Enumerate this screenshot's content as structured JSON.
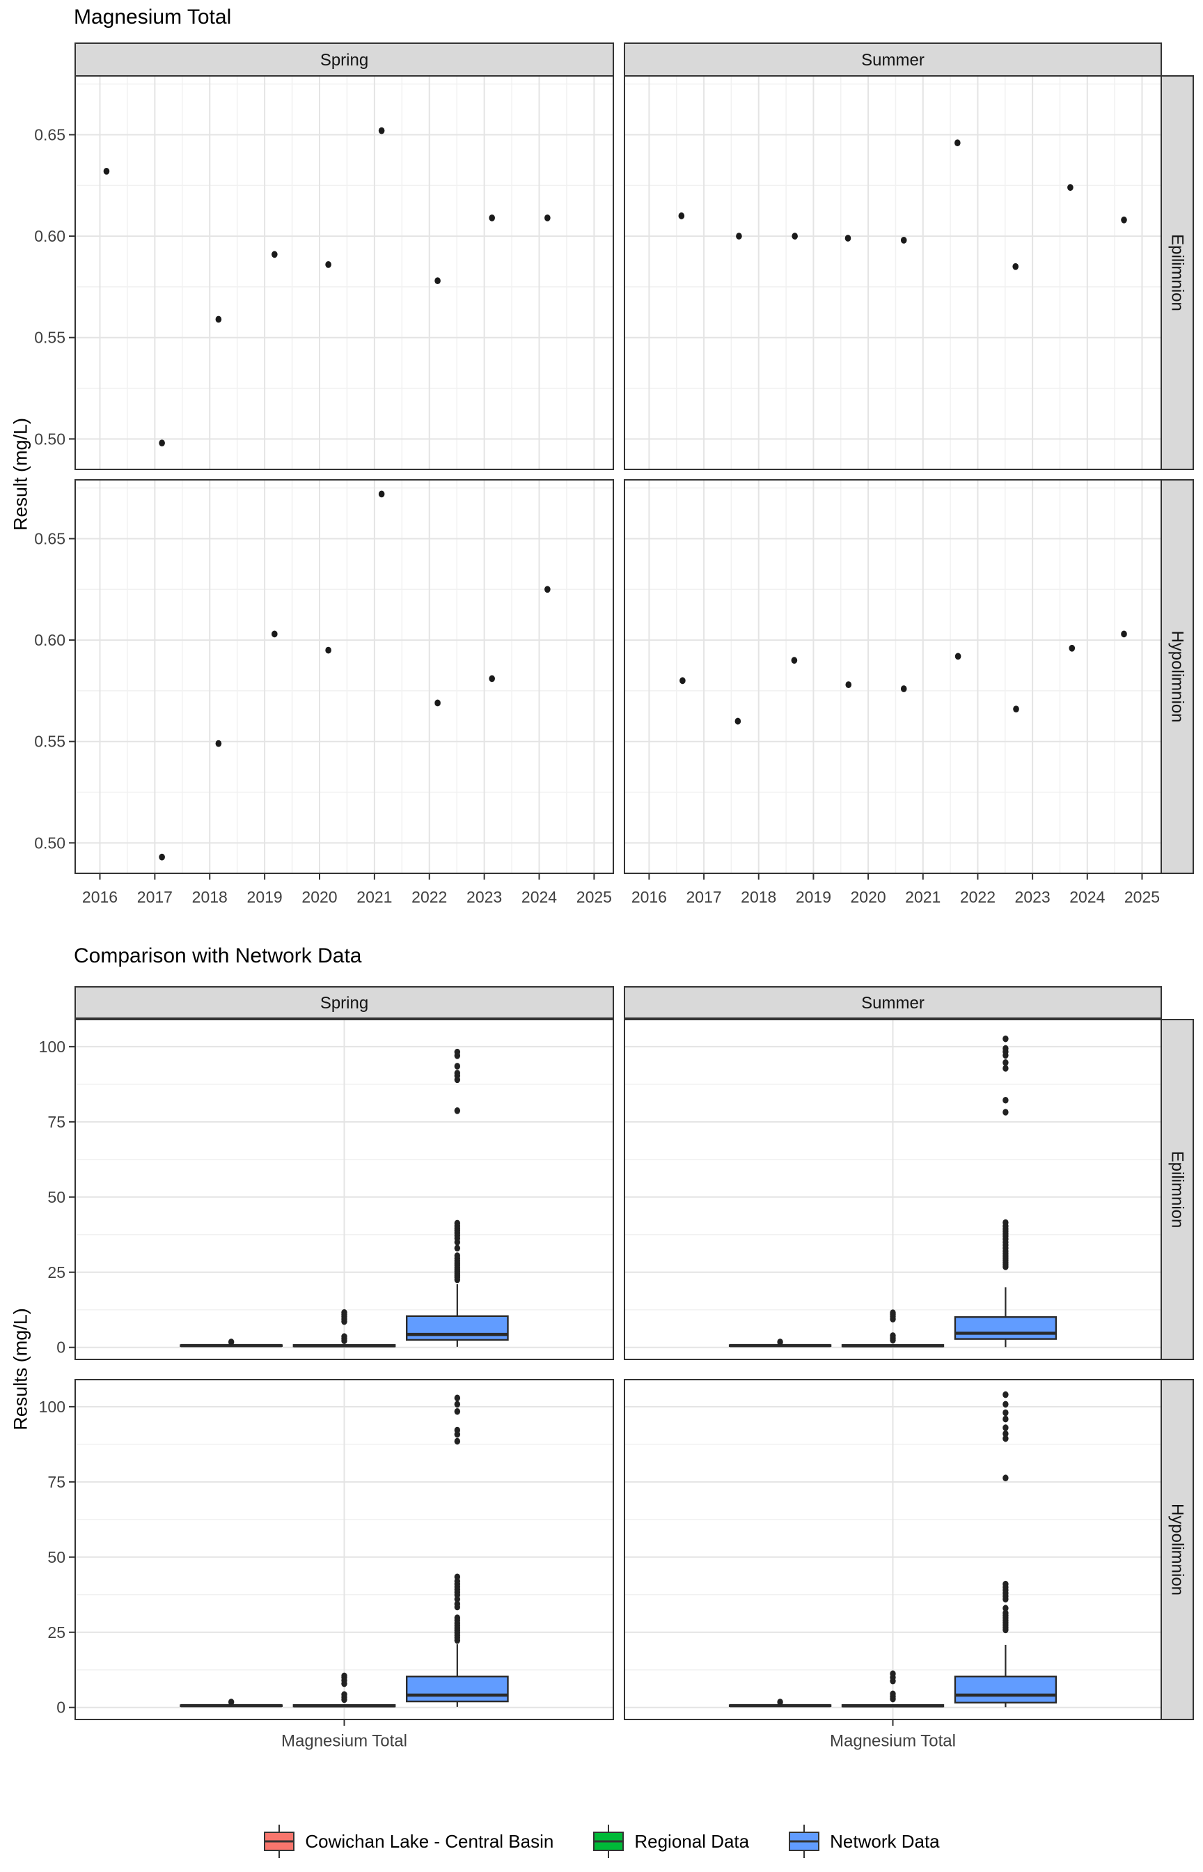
{
  "chart_data": [
    {
      "type": "scatter",
      "title": "Magnesium Total",
      "ylabel": "Result (mg/L)",
      "col_facets": [
        "Spring",
        "Summer"
      ],
      "row_facets": [
        "Epilimnion",
        "Hypolimnion"
      ],
      "x_ticks": [
        2016,
        2017,
        2018,
        2019,
        2020,
        2021,
        2022,
        2023,
        2024,
        2025
      ],
      "y_ticks": [
        0.5,
        0.55,
        0.6,
        0.65
      ],
      "y_tick_labels": [
        "0.50",
        "0.55",
        "0.60",
        "0.65"
      ],
      "xlim": [
        2015.55,
        2025.35
      ],
      "ylim": [
        0.485,
        0.679
      ],
      "grid": true,
      "point_color": "#1a1a1a",
      "series": [
        {
          "col": "Spring",
          "row": "Epilimnion",
          "points": [
            [
              2016.12,
              0.632
            ],
            [
              2017.13,
              0.498
            ],
            [
              2018.16,
              0.559
            ],
            [
              2019.18,
              0.591
            ],
            [
              2020.16,
              0.586
            ],
            [
              2021.13,
              0.652
            ],
            [
              2022.15,
              0.578
            ],
            [
              2023.14,
              0.609
            ],
            [
              2024.15,
              0.609
            ]
          ]
        },
        {
          "col": "Summer",
          "row": "Epilimnion",
          "points": [
            [
              2016.59,
              0.61
            ],
            [
              2017.64,
              0.6
            ],
            [
              2018.66,
              0.6
            ],
            [
              2019.63,
              0.599
            ],
            [
              2020.65,
              0.598
            ],
            [
              2021.63,
              0.646
            ],
            [
              2022.69,
              0.585
            ],
            [
              2023.69,
              0.624
            ],
            [
              2024.67,
              0.608
            ]
          ]
        },
        {
          "col": "Spring",
          "row": "Hypolimnion",
          "points": [
            [
              2017.13,
              0.493
            ],
            [
              2018.16,
              0.549
            ],
            [
              2019.18,
              0.603
            ],
            [
              2020.16,
              0.595
            ],
            [
              2021.13,
              0.672
            ],
            [
              2022.15,
              0.569
            ],
            [
              2023.14,
              0.581
            ],
            [
              2024.15,
              0.625
            ]
          ]
        },
        {
          "col": "Summer",
          "row": "Hypolimnion",
          "points": [
            [
              2016.61,
              0.58
            ],
            [
              2017.62,
              0.56
            ],
            [
              2018.65,
              0.59
            ],
            [
              2019.64,
              0.578
            ],
            [
              2020.65,
              0.576
            ],
            [
              2021.64,
              0.592
            ],
            [
              2022.7,
              0.566
            ],
            [
              2023.72,
              0.596
            ],
            [
              2024.67,
              0.603
            ]
          ]
        }
      ]
    },
    {
      "type": "box",
      "title": "Comparison with Network Data",
      "ylabel": "Results (mg/L)",
      "x_category": "Magnesium Total",
      "col_facets": [
        "Spring",
        "Summer"
      ],
      "row_facets": [
        "Epilimnion",
        "Hypolimnion"
      ],
      "y_ticks": [
        0,
        25,
        50,
        75,
        100
      ],
      "y_tick_labels": [
        "0",
        "25",
        "50",
        "75",
        "100"
      ],
      "ylim": [
        -4,
        109
      ],
      "grid": true,
      "groups": [
        "Cowichan Lake - Central Basin",
        "Regional Data",
        "Network Data"
      ],
      "group_colors": [
        "#F8766D",
        "#00BA38",
        "#619CFF"
      ],
      "panels": [
        {
          "col": "Spring",
          "row": "Epilimnion",
          "boxes": [
            {
              "group": "Cowichan Lake - Central Basin",
              "min": 0.3,
              "q1": 0.45,
              "median": 0.6,
              "q3": 0.75,
              "max": 0.9,
              "outliers": [
                1.8
              ]
            },
            {
              "group": "Regional Data",
              "min": 0.1,
              "q1": 0.35,
              "median": 0.55,
              "q3": 0.8,
              "max": 1.1,
              "outliers": [
                2.2,
                2.9,
                3.6,
                8.6,
                9.4,
                10.2,
                10.9,
                11.6
              ]
            },
            {
              "group": "Network Data",
              "min": 0.2,
              "q1": 2.5,
              "median": 4.3,
              "q3": 10.4,
              "max": 21,
              "outliers": [
                22.5,
                23.3,
                24,
                24.6,
                25.2,
                25.8,
                26.5,
                27.3,
                28,
                28.8,
                29.6,
                30.5,
                33,
                35,
                36.3,
                37.2,
                38,
                38.8,
                39.6,
                40.4,
                41.3,
                78.7,
                89,
                90.3,
                91.2,
                93.5,
                97,
                98.2
              ]
            }
          ]
        },
        {
          "col": "Summer",
          "row": "Epilimnion",
          "boxes": [
            {
              "group": "Cowichan Lake - Central Basin",
              "min": 0.3,
              "q1": 0.45,
              "median": 0.6,
              "q3": 0.75,
              "max": 0.9,
              "outliers": [
                1.8
              ]
            },
            {
              "group": "Regional Data",
              "min": 0.1,
              "q1": 0.35,
              "median": 0.55,
              "q3": 0.8,
              "max": 1.1,
              "outliers": [
                2.4,
                3.1,
                3.9,
                9.4,
                10.3,
                11.0,
                11.5
              ]
            },
            {
              "group": "Network Data",
              "min": 0.1,
              "q1": 2.8,
              "median": 4.7,
              "q3": 10.1,
              "max": 20,
              "outliers": [
                26.8,
                27.5,
                28.2,
                29,
                29.7,
                30.4,
                31.2,
                32,
                33,
                34,
                35,
                36,
                37,
                37.8,
                38.6,
                39.4,
                40.3,
                41.5,
                78.2,
                82.2,
                92.8,
                94.7,
                97.1,
                98.3,
                99.4,
                102.6
              ]
            }
          ]
        },
        {
          "col": "Spring",
          "row": "Hypolimnion",
          "boxes": [
            {
              "group": "Cowichan Lake - Central Basin",
              "min": 0.3,
              "q1": 0.45,
              "median": 0.6,
              "q3": 0.75,
              "max": 0.9,
              "outliers": [
                1.8
              ]
            },
            {
              "group": "Regional Data",
              "min": 0.1,
              "q1": 0.35,
              "median": 0.55,
              "q3": 0.8,
              "max": 1.1,
              "outliers": [
                2.6,
                3.4,
                4.3,
                7.9,
                9.0,
                10.0,
                10.5
              ]
            },
            {
              "group": "Network Data",
              "min": 0.2,
              "q1": 2.0,
              "median": 4.1,
              "q3": 10.3,
              "max": 21,
              "outliers": [
                22.3,
                23.2,
                24,
                24.8,
                25.6,
                26.4,
                27.2,
                28,
                29,
                29.8,
                33.4,
                34.4,
                36,
                37.4,
                38.3,
                39.2,
                40.1,
                41,
                42,
                43.4,
                88.5,
                90.8,
                92.2,
                98.4,
                100.8,
                102.9
              ]
            }
          ]
        },
        {
          "col": "Summer",
          "row": "Hypolimnion",
          "boxes": [
            {
              "group": "Cowichan Lake - Central Basin",
              "min": 0.3,
              "q1": 0.45,
              "median": 0.6,
              "q3": 0.75,
              "max": 0.9,
              "outliers": [
                1.8
              ]
            },
            {
              "group": "Regional Data",
              "min": 0.1,
              "q1": 0.35,
              "median": 0.55,
              "q3": 0.8,
              "max": 1.1,
              "outliers": [
                2.8,
                3.6,
                4.5,
                8.8,
                10.0,
                11.2
              ]
            },
            {
              "group": "Network Data",
              "min": 0.1,
              "q1": 1.6,
              "median": 4.1,
              "q3": 10.3,
              "max": 20.8,
              "outliers": [
                25.8,
                26.6,
                27.4,
                28.2,
                29,
                29.8,
                30.6,
                31.4,
                33,
                36,
                37,
                38,
                39,
                40,
                41,
                76.3,
                89.4,
                91,
                93,
                95.9,
                98,
                100.8,
                104
              ]
            }
          ]
        }
      ]
    }
  ],
  "legend": {
    "items": [
      {
        "label": "Cowichan Lake - Central Basin",
        "color": "#F8766D"
      },
      {
        "label": "Regional Data",
        "color": "#00BA38"
      },
      {
        "label": "Network Data",
        "color": "#619CFF"
      }
    ]
  },
  "theme": {
    "strip_fill": "#D9D9D9",
    "strip_text_color": "#141414",
    "panel_border": "#333333",
    "grid_major": "#E4E4E4",
    "grid_minor": "#F1F1F1",
    "tick_text_color": "#404040",
    "box_stroke": "#2A2A2A"
  }
}
